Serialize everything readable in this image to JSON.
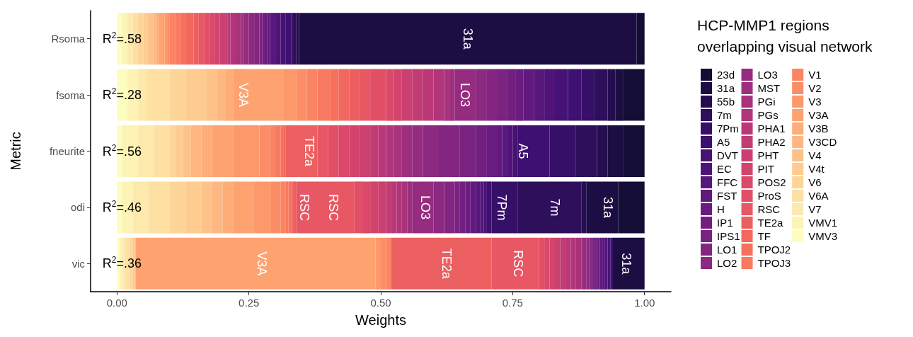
{
  "chart_data": {
    "type": "bar",
    "orientation": "horizontal",
    "stacked": true,
    "legend": "right",
    "legend_title": "HCP-MMP1 regions overlapping visual network",
    "xlabel": "Weights",
    "ylabel": "Metric",
    "xlim": [
      -0.05,
      1.05
    ],
    "xticks": [
      {
        "value": 0,
        "label": "0.00"
      },
      {
        "value": 0.25,
        "label": "0.25"
      },
      {
        "value": 0.5,
        "label": "0.50"
      },
      {
        "value": 0.75,
        "label": "0.75"
      },
      {
        "value": 1,
        "label": "1.00"
      }
    ],
    "categories": [
      "Rsoma",
      "fsoma",
      "fneurite",
      "odi",
      "vic"
    ],
    "series": [
      {
        "name": "VMV3",
        "color": "#fcfdbf",
        "values": [
          0.01,
          0.02,
          0.01,
          0.01,
          0.005
        ]
      },
      {
        "name": "VMV1",
        "color": "#fcf3b5",
        "values": [
          0.01,
          0.02,
          0.03,
          0.02,
          0.005
        ]
      },
      {
        "name": "V7",
        "color": "#fde9ac",
        "values": [
          0.01,
          0.016,
          0.03,
          0.03,
          0.005
        ]
      },
      {
        "name": "V6A",
        "color": "#fde0a2",
        "values": [
          0.01,
          0.044,
          0.03,
          0.04,
          0.01
        ]
      },
      {
        "name": "V6",
        "color": "#fed598",
        "values": [
          0.01,
          0.03,
          0.01,
          0.03,
          0.005
        ]
      },
      {
        "name": "V4t",
        "color": "#fecc90",
        "values": [
          0.01,
          0.04,
          0.015,
          0.03,
          0.005
        ]
      },
      {
        "name": "V4",
        "color": "#fec187",
        "values": [
          0.01,
          0.02,
          0.015,
          0.02,
          0
        ]
      },
      {
        "name": "V3CD",
        "color": "#feb780",
        "values": [
          0.005,
          0.015,
          0.02,
          0.02,
          0
        ]
      },
      {
        "name": "V3B",
        "color": "#fead78",
        "values": [
          0.005,
          0.015,
          0.02,
          0.02,
          0
        ]
      },
      {
        "name": "V3A",
        "color": "#fea270",
        "values": [
          0.01,
          0.095,
          0.04,
          0.04,
          0.455
        ]
      },
      {
        "name": "V3",
        "color": "#fd986b",
        "values": [
          0.005,
          0.025,
          0.05,
          0.03,
          0.01
        ]
      },
      {
        "name": "V2",
        "color": "#fb8e67",
        "values": [
          0.005,
          0.02,
          0.02,
          0.02,
          0.01
        ]
      },
      {
        "name": "V1",
        "color": "#fa8463",
        "values": [
          0.01,
          0.02,
          0.01,
          0.01,
          0.01
        ]
      },
      {
        "name": "TPOJ3",
        "color": "#f87a60",
        "values": [
          0.01,
          0.025,
          0.01,
          0.005,
          0
        ]
      },
      {
        "name": "TPOJ2",
        "color": "#f7705c",
        "values": [
          0.01,
          0.015,
          0.005,
          0.005,
          0
        ]
      },
      {
        "name": "TF",
        "color": "#f2685f",
        "values": [
          0.015,
          0.02,
          0.005,
          0.005,
          0
        ]
      },
      {
        "name": "TE2a",
        "color": "#ec5f61",
        "values": [
          0.01,
          0.02,
          0.06,
          0.005,
          0.19
        ]
      },
      {
        "name": "RSC",
        "color": "#e75764",
        "values": [
          0.01,
          0.02,
          0.02,
          0.11,
          0.09
        ]
      },
      {
        "name": "ProS",
        "color": "#e24e66",
        "values": [
          0.01,
          0.03,
          0.02,
          0.015,
          0.01
        ]
      },
      {
        "name": "POS2",
        "color": "#db4869",
        "values": [
          0.01,
          0.015,
          0.02,
          0.015,
          0.01
        ]
      },
      {
        "name": "PIT",
        "color": "#d3446d",
        "values": [
          0.01,
          0.015,
          0.02,
          0.015,
          0.01
        ]
      },
      {
        "name": "PHT",
        "color": "#cb4071",
        "values": [
          0.01,
          0.02,
          0.02,
          0.015,
          0.01
        ]
      },
      {
        "name": "PHA2",
        "color": "#c23c74",
        "values": [
          0.005,
          0.02,
          0.015,
          0.01,
          0.01
        ]
      },
      {
        "name": "PHA1",
        "color": "#ba3878",
        "values": [
          0.005,
          0.02,
          0.015,
          0.01,
          0.01
        ]
      },
      {
        "name": "PGs",
        "color": "#b1357a",
        "values": [
          0.01,
          0.02,
          0.015,
          0.01,
          0.01
        ]
      },
      {
        "name": "PGi",
        "color": "#a8327c",
        "values": [
          0.01,
          0.01,
          0.015,
          0.01,
          0.01
        ]
      },
      {
        "name": "MST",
        "color": "#9e2f7e",
        "values": [
          0.005,
          0.01,
          0.02,
          0.01,
          0.005
        ]
      },
      {
        "name": "LO3",
        "color": "#952c7f",
        "values": [
          0.01,
          0.04,
          0.02,
          0.04,
          0.005
        ]
      },
      {
        "name": "LO2",
        "color": "#8c2981",
        "values": [
          0.01,
          0.02,
          0.03,
          0.02,
          0.005
        ]
      },
      {
        "name": "LO1",
        "color": "#842681",
        "values": [
          0.01,
          0.02,
          0.04,
          0.02,
          0.005
        ]
      },
      {
        "name": "IPS1",
        "color": "#7b2381",
        "values": [
          0.005,
          0.02,
          0.03,
          0.01,
          0.005
        ]
      },
      {
        "name": "IP1",
        "color": "#721f80",
        "values": [
          0.005,
          0.015,
          0.02,
          0.01,
          0.005
        ]
      },
      {
        "name": "H",
        "color": "#6a1c80",
        "values": [
          0.005,
          0.015,
          0.02,
          0.01,
          0.005
        ]
      },
      {
        "name": "FST",
        "color": "#61197f",
        "values": [
          0.005,
          0.02,
          0.01,
          0.01,
          0.005
        ]
      },
      {
        "name": "FFC",
        "color": "#58177b",
        "values": [
          0.01,
          0.02,
          0.01,
          0.01,
          0.005
        ]
      },
      {
        "name": "EC",
        "color": "#501478",
        "values": [
          0.01,
          0.02,
          0.01,
          0.005,
          0.005
        ]
      },
      {
        "name": "DVT",
        "color": "#471275",
        "values": [
          0.01,
          0.025,
          0.01,
          0.005,
          0.005
        ]
      },
      {
        "name": "A5",
        "color": "#3e1071",
        "values": [
          0.01,
          0.025,
          0.06,
          0.01,
          0.005
        ]
      },
      {
        "name": "7Pm",
        "color": "#360f68",
        "values": [
          0.005,
          0.025,
          0.05,
          0.05,
          0
        ]
      },
      {
        "name": "7m",
        "color": "#2d0f5b",
        "values": [
          0.005,
          0.025,
          0.04,
          0.12,
          0
        ]
      },
      {
        "name": "55b",
        "color": "#250e4f",
        "values": [
          0.005,
          0.015,
          0.02,
          0.01,
          0
        ]
      },
      {
        "name": "31a",
        "color": "#1c0e42",
        "values": [
          0.64,
          0.015,
          0.03,
          0.06,
          0.06
        ]
      },
      {
        "name": "23d",
        "color": "#140e36",
        "values": [
          0.015,
          0.04,
          0.04,
          0.05,
          0
        ]
      }
    ],
    "annotations": [
      {
        "text": "R$^{2}$=.58",
        "x": 0.01,
        "y": "Rsoma"
      },
      {
        "text": "R$^{2}$=.28",
        "x": 0.01,
        "y": "fsoma"
      },
      {
        "text": "R$^{2}$=.56",
        "x": 0.01,
        "y": "fneurite"
      },
      {
        "text": "R$^{2}$=.46",
        "x": 0.01,
        "y": "odi"
      },
      {
        "text": "R$^{2}$=.36",
        "x": 0.01,
        "y": "vic"
      },
      {
        "text": "31a",
        "x": 0.665,
        "y": "Rsoma"
      },
      {
        "text": "V3A",
        "x": 0.24,
        "y": "fsoma"
      },
      {
        "text": "LO3",
        "x": 0.66,
        "y": "fsoma"
      },
      {
        "text": "TE2a",
        "x": 0.365,
        "y": "fneurite"
      },
      {
        "text": "A5",
        "x": 0.77,
        "y": "fneurite"
      },
      {
        "text": "RSC",
        "x": 0.355,
        "y": "odi"
      },
      {
        "text": "RSC",
        "x": 0.41,
        "y": "odi"
      },
      {
        "text": "LO3",
        "x": 0.585,
        "y": "odi"
      },
      {
        "text": "7Pm",
        "x": 0.73,
        "y": "odi"
      },
      {
        "text": "7m",
        "x": 0.83,
        "y": "odi"
      },
      {
        "text": "31a",
        "x": 0.93,
        "y": "odi"
      },
      {
        "text": "V3A",
        "x": 0.275,
        "y": "vic"
      },
      {
        "text": "TE2a",
        "x": 0.625,
        "y": "vic"
      },
      {
        "text": "RSC",
        "x": 0.76,
        "y": "vic"
      },
      {
        "text": "31a",
        "x": 0.965,
        "y": "vic"
      }
    ]
  }
}
